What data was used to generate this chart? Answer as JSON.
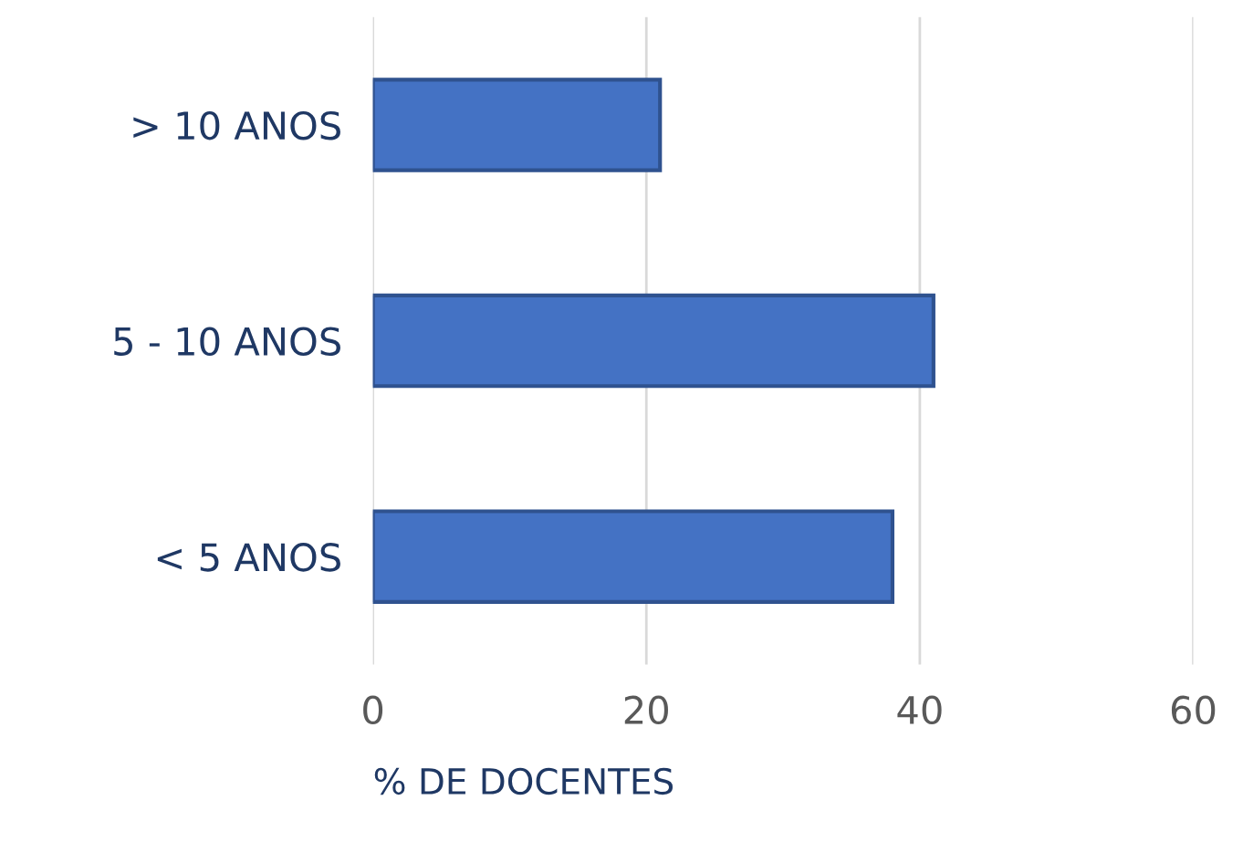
{
  "chart_data": {
    "type": "bar",
    "orientation": "horizontal",
    "categories": [
      "> 10 ANOS",
      "5 - 10 ANOS",
      "< 5 ANOS"
    ],
    "values": [
      21,
      41,
      38
    ],
    "color": "#4472c4",
    "xlabel": "% DE DOCENTES",
    "xlim": [
      0,
      60
    ],
    "xticks": [
      0,
      20,
      40,
      60
    ],
    "grid": "x"
  }
}
